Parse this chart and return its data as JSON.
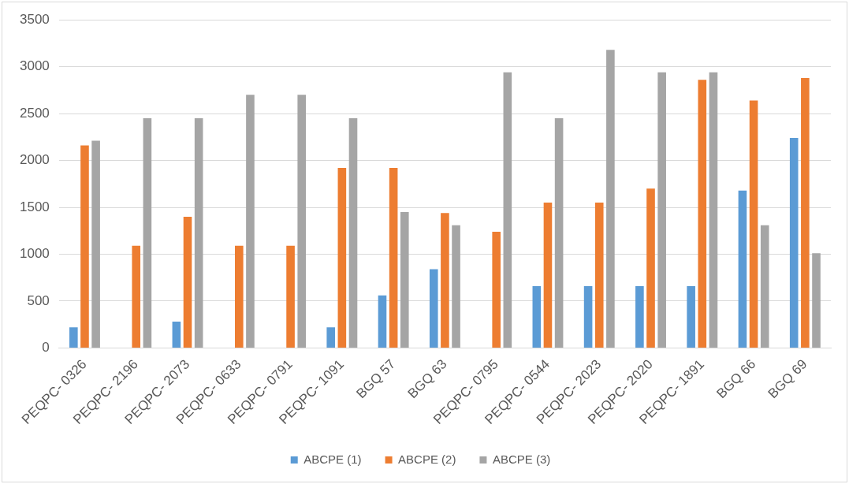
{
  "chart_data": {
    "type": "bar",
    "categories": [
      "PEQPC- 0326",
      "PEQPC- 2196",
      "PEQPC- 2073",
      "PEQPC- 0633",
      "PEQPC- 0791",
      "PEQPC- 1091",
      "BGQ 57",
      "BGQ 63",
      "PEQPC- 0795",
      "PEQPC- 0544",
      "PEQPC- 2023",
      "PEQPC- 2020",
      "PEQPC- 1891",
      "BGQ 66",
      "BGQ 69"
    ],
    "series": [
      {
        "name": "ABCPE (1)",
        "color": "#5b9bd5",
        "values": [
          220,
          null,
          280,
          null,
          null,
          220,
          560,
          840,
          null,
          660,
          660,
          660,
          660,
          1680,
          2240
        ]
      },
      {
        "name": "ABCPE (2)",
        "color": "#ed7d31",
        "values": [
          2160,
          1090,
          1400,
          1090,
          1090,
          1920,
          1920,
          1440,
          1240,
          1550,
          1550,
          1700,
          2860,
          2640,
          2880
        ]
      },
      {
        "name": "ABCPE (3)",
        "color": "#a5a5a5",
        "values": [
          2210,
          2450,
          2450,
          2700,
          2700,
          2450,
          1450,
          1310,
          2940,
          2450,
          3180,
          2940,
          2940,
          1310,
          1010
        ]
      }
    ],
    "ylim": [
      0,
      3500
    ],
    "yticks": [
      0,
      500,
      1000,
      1500,
      2000,
      2500,
      3000,
      3500
    ],
    "grid": "y",
    "legend": "bottom"
  }
}
